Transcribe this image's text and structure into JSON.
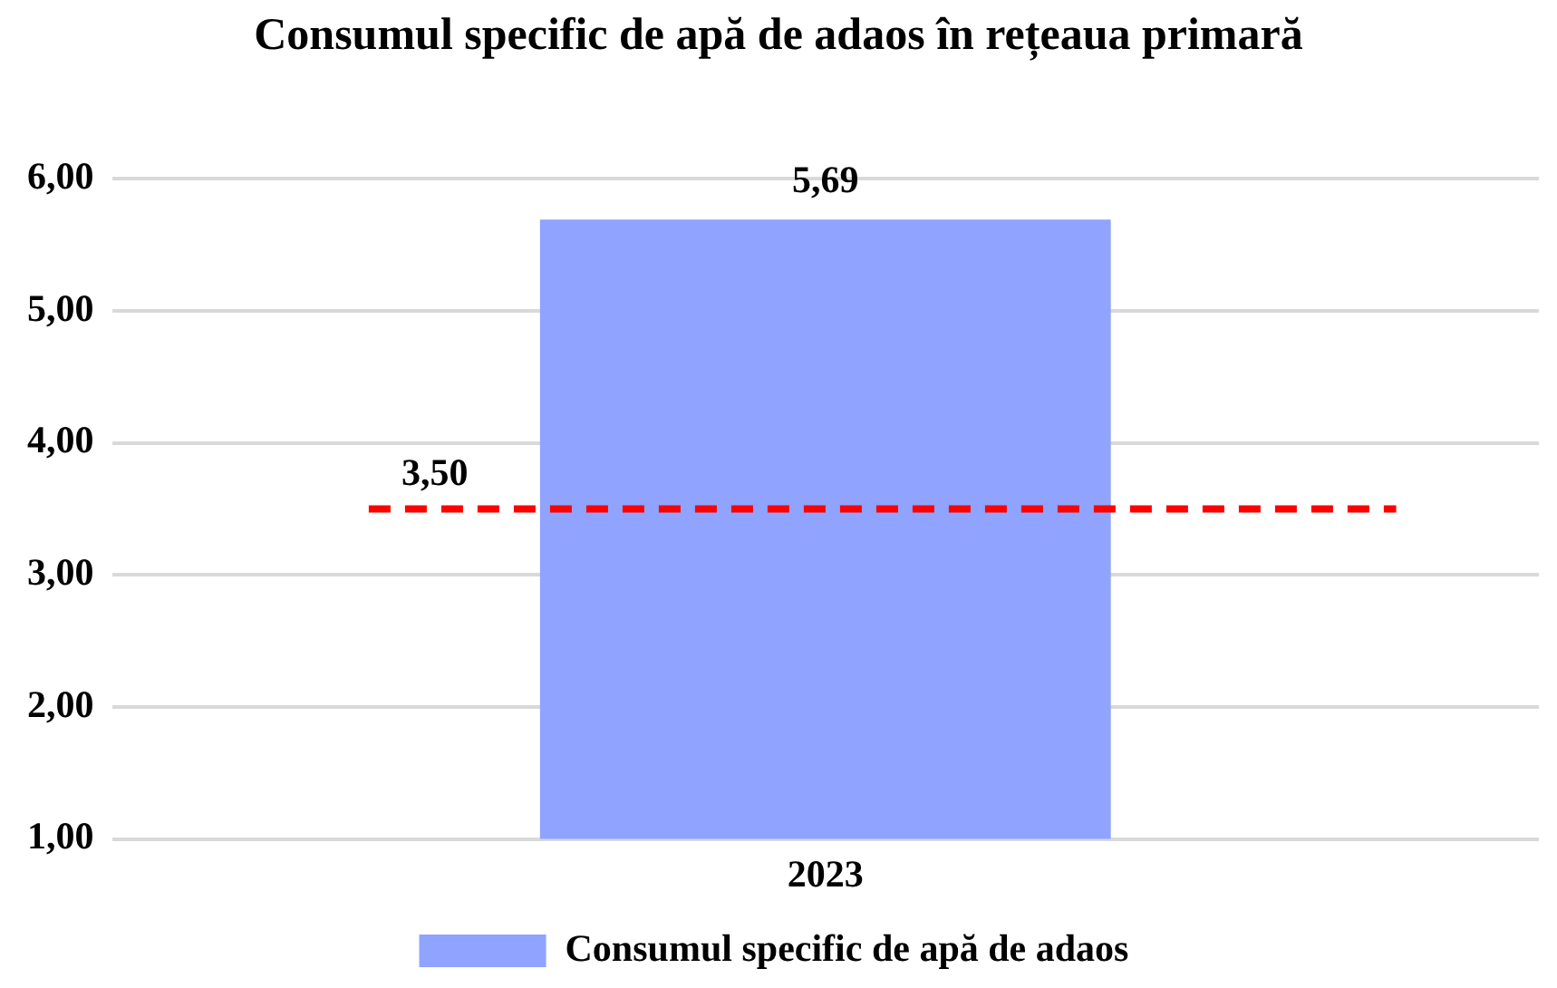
{
  "chart_data": {
    "type": "bar",
    "title": "Consumul specific de apă de adaos în rețeaua primară",
    "categories": [
      "2023"
    ],
    "series": [
      {
        "name": "Consumul specific de apă de adaos",
        "color": "#8fa3ff",
        "values": [
          5.69
        ],
        "value_labels": [
          "5,69"
        ]
      }
    ],
    "ylim": [
      1,
      6
    ],
    "yticks": [
      {
        "value": 1,
        "label": "1,00"
      },
      {
        "value": 2,
        "label": "2,00"
      },
      {
        "value": 3,
        "label": "3,00"
      },
      {
        "value": 4,
        "label": "4,00"
      },
      {
        "value": 5,
        "label": "5,00"
      },
      {
        "value": 6,
        "label": "6,00"
      }
    ],
    "ref_lines": [
      {
        "axis": "y",
        "value": 3.5,
        "label": "3,50",
        "color": "#ff0000",
        "line_style": "dashed"
      }
    ],
    "grid": "y",
    "legend": "bottom"
  }
}
